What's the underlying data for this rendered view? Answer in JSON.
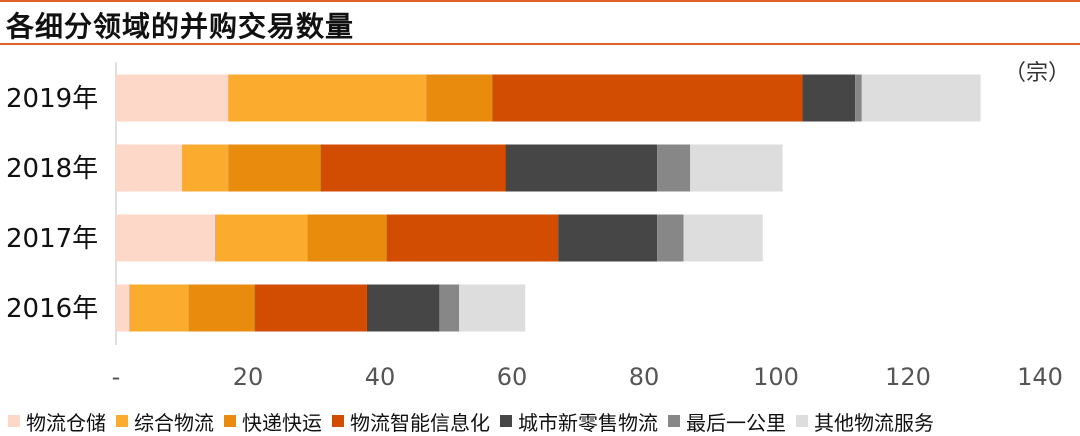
{
  "header": {
    "title": "各细分领域的并购交易数量"
  },
  "chart_data": {
    "type": "bar",
    "orientation": "horizontal",
    "stacked": true,
    "title": "各细分领域的并购交易数量",
    "unit_label": "（宗）",
    "categories": [
      "2019年",
      "2018年",
      "2017年",
      "2016年"
    ],
    "x_ticks": [
      "-",
      "20",
      "40",
      "60",
      "80",
      "100",
      "120",
      "140"
    ],
    "xlim": [
      0,
      140
    ],
    "grid": false,
    "legend_position": "bottom",
    "series": [
      {
        "name": "物流仓储",
        "color": "#fdd8c8",
        "values": [
          17,
          10,
          15,
          2
        ]
      },
      {
        "name": "综合物流",
        "color": "#fbab2d",
        "values": [
          30,
          7,
          14,
          9
        ]
      },
      {
        "name": "快递快运",
        "color": "#e98b0c",
        "values": [
          10,
          14,
          12,
          10
        ]
      },
      {
        "name": "物流智能信息化",
        "color": "#d24d02",
        "values": [
          47,
          28,
          26,
          17
        ]
      },
      {
        "name": "城市新零售物流",
        "color": "#464646",
        "values": [
          8,
          23,
          15,
          11
        ]
      },
      {
        "name": "最后一公里",
        "color": "#878787",
        "values": [
          1,
          5,
          4,
          3
        ]
      },
      {
        "name": "其他物流服务",
        "color": "#dddddd",
        "values": [
          18,
          14,
          12,
          10
        ]
      }
    ]
  }
}
